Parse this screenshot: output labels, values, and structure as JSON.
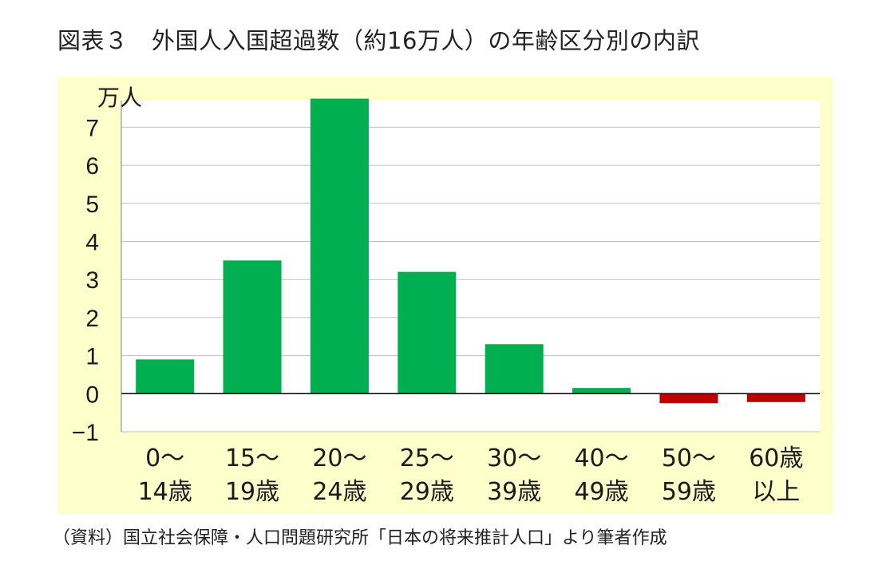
{
  "title": "図表３　外国人入国超過数（約16万人）の年齢区分別の内訳",
  "source": "（資料）国立社会保障・人口問題研究所「日本の将来推計人口」より筆者作成",
  "colors": {
    "positive": "#00b050",
    "negative": "#c00000",
    "panel": "#ffffcc",
    "grid": "#bfbfbf"
  },
  "chart_data": {
    "type": "bar",
    "title": "外国人入国超過数（約16万人）の年齢区分別の内訳",
    "ylabel": "万人",
    "xlabel": "",
    "ylim": [
      -1,
      7.7
    ],
    "yticks": [
      -1,
      0,
      1,
      2,
      3,
      4,
      5,
      6,
      7
    ],
    "grid": true,
    "categories": [
      [
        "0～",
        "14歳"
      ],
      [
        "15～",
        "19歳"
      ],
      [
        "20～",
        "24歳"
      ],
      [
        "25～",
        "29歳"
      ],
      [
        "30～",
        "39歳"
      ],
      [
        "40～",
        "49歳"
      ],
      [
        "50～",
        "59歳"
      ],
      [
        "60歳",
        "以上"
      ]
    ],
    "values": [
      0.9,
      3.5,
      7.75,
      3.2,
      1.3,
      0.15,
      -0.25,
      -0.22
    ]
  }
}
